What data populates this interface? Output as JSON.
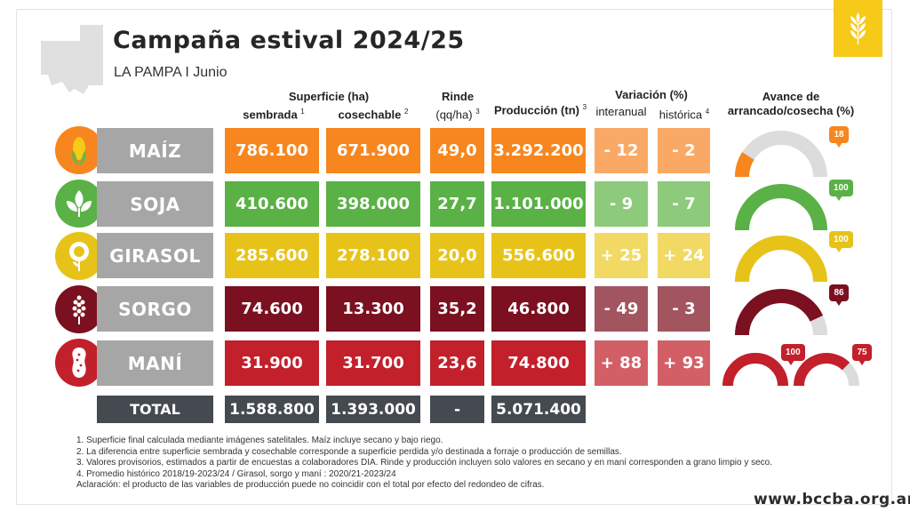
{
  "header": {
    "title": "Campaña estival 2024/25",
    "subtitle": "LA PAMPA I Junio",
    "url": "www.bccba.org.ar"
  },
  "columns": {
    "superficie": "Superficie (ha)",
    "sembrada": "sembrada",
    "sembrada_sup": "1",
    "cosechable": "cosechable",
    "cosechable_sup": "2",
    "rinde": "Rinde",
    "rinde_unit": "(qq/ha)",
    "rinde_sup": "3",
    "produccion": "Producción (tn)",
    "produccion_sup": "3",
    "variacion": "Variación (%)",
    "interanual": "interanual",
    "historica": "histórica",
    "historica_sup": "4",
    "avance_1": "Avance de",
    "avance_2": "arrancado/cosecha (%)"
  },
  "colors": {
    "maiz": "#f7861e",
    "soja": "#5ab145",
    "girasol": "#e7c31a",
    "sorgo": "#7a1020",
    "mani": "#c2202b",
    "gauge_bg": "#dcdcdc",
    "total": "#444a4f",
    "name_box": "#a6a6a6"
  },
  "chart_data": {
    "type": "table",
    "rows": [
      {
        "crop": "MAÍZ",
        "icon": "corn-icon",
        "sembrada": "786.100",
        "cosechable": "671.900",
        "rinde": "49,0",
        "produccion": "3.292.200",
        "interanual": "- 12",
        "historica": "- 2",
        "avance": [
          18
        ]
      },
      {
        "crop": "SOJA",
        "icon": "soy-icon",
        "sembrada": "410.600",
        "cosechable": "398.000",
        "rinde": "27,7",
        "produccion": "1.101.000",
        "interanual": "- 9",
        "historica": "- 7",
        "avance": [
          100
        ]
      },
      {
        "crop": "GIRASOL",
        "icon": "sunflower-icon",
        "sembrada": "285.600",
        "cosechable": "278.100",
        "rinde": "20,0",
        "produccion": "556.600",
        "interanual": "+ 25",
        "historica": "+ 24",
        "avance": [
          100
        ]
      },
      {
        "crop": "SORGO",
        "icon": "sorghum-icon",
        "sembrada": "74.600",
        "cosechable": "13.300",
        "rinde": "35,2",
        "produccion": "46.800",
        "interanual": "- 49",
        "historica": "- 3",
        "avance": [
          86
        ]
      },
      {
        "crop": "MANÍ",
        "icon": "peanut-icon",
        "sembrada": "31.900",
        "cosechable": "31.700",
        "rinde": "23,6",
        "produccion": "74.800",
        "interanual": "+ 88",
        "historica": "+ 93",
        "avance": [
          100,
          75
        ]
      }
    ],
    "total": {
      "label": "TOTAL",
      "sembrada": "1.588.800",
      "cosechable": "1.393.000",
      "rinde": "-",
      "produccion": "5.071.400"
    }
  },
  "notes": [
    "1. Superficie final calculada mediante imágenes satelitales. Maíz incluye secano y bajo riego.",
    "2. La diferencia entre superficie sembrada y cosechable corresponde a superficie perdida y/o destinada a forraje o producción de semillas.",
    "3. Valores provisorios, estimados a partir de encuestas a colaboradores DIA.  Rinde y producción incluyen solo valores en secano y en maní corresponden a grano limpio y seco.",
    "4. Promedio histórico 2018/19-2023/24 / Girasol, sorgo y maní : 2020/21-2023/24",
    "Aclaración: el producto de las variables de producción puede no coincidir con el total por efecto del redondeo de cifras."
  ]
}
